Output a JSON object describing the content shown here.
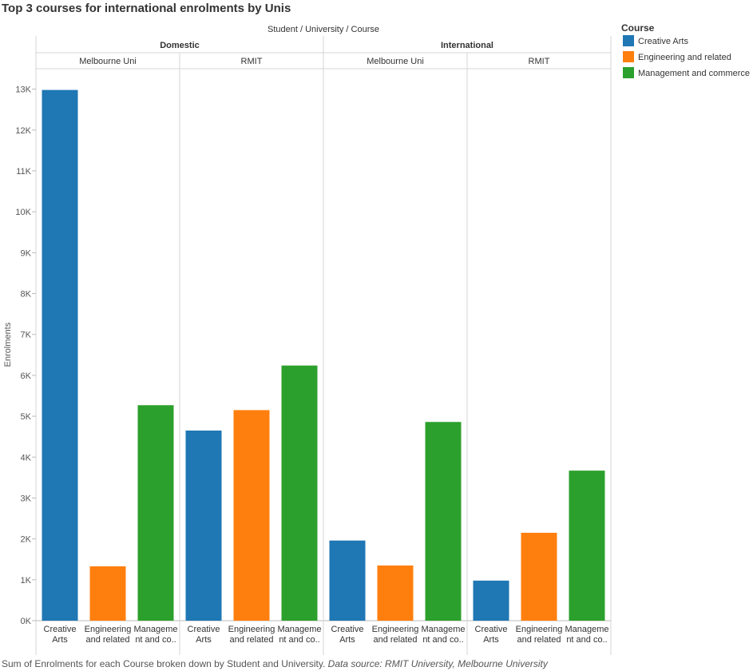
{
  "title": "Top 3 courses for international enrolments by Unis",
  "caption": {
    "text": "Sum of Enrolments for each Course broken down by Student and University.",
    "source": "Data source: RMIT University, Melbourne University"
  },
  "chart_data": {
    "type": "bar",
    "title": "Top 3 courses for international enrolments by Unis",
    "column_header": "Student  /  University  /  Course",
    "ylabel": "Enrolments",
    "ylim": [
      0,
      13500
    ],
    "y_ticks": [
      0,
      1000,
      2000,
      3000,
      4000,
      5000,
      6000,
      7000,
      8000,
      9000,
      10000,
      11000,
      12000,
      13000
    ],
    "y_tick_labels": [
      "0K",
      "1K",
      "2K",
      "3K",
      "4K",
      "5K",
      "6K",
      "7K",
      "8K",
      "9K",
      "10K",
      "11K",
      "12K",
      "13K"
    ],
    "category_labels": [
      [
        "Creative",
        "Arts"
      ],
      [
        "Engineering",
        "and related"
      ],
      [
        "Manageme",
        "nt and co.."
      ]
    ],
    "legend": {
      "title": "Course",
      "placement": "right",
      "items": [
        {
          "name": "Creative Arts",
          "color": "#1f77b4"
        },
        {
          "name": "Engineering and related",
          "color": "#ff7f0e"
        },
        {
          "name": "Management and commerce",
          "color": "#2ca02c"
        }
      ]
    },
    "students": [
      {
        "name": "Domestic",
        "universities": [
          {
            "name": "Melbourne Uni",
            "values": [
              12980,
              1330,
              5270
            ]
          },
          {
            "name": "RMIT",
            "values": [
              4650,
              5150,
              6240
            ]
          }
        ]
      },
      {
        "name": "International",
        "universities": [
          {
            "name": "Melbourne Uni",
            "values": [
              1960,
              1350,
              4860
            ]
          },
          {
            "name": "RMIT",
            "values": [
              980,
              2150,
              3670
            ]
          }
        ]
      }
    ]
  }
}
